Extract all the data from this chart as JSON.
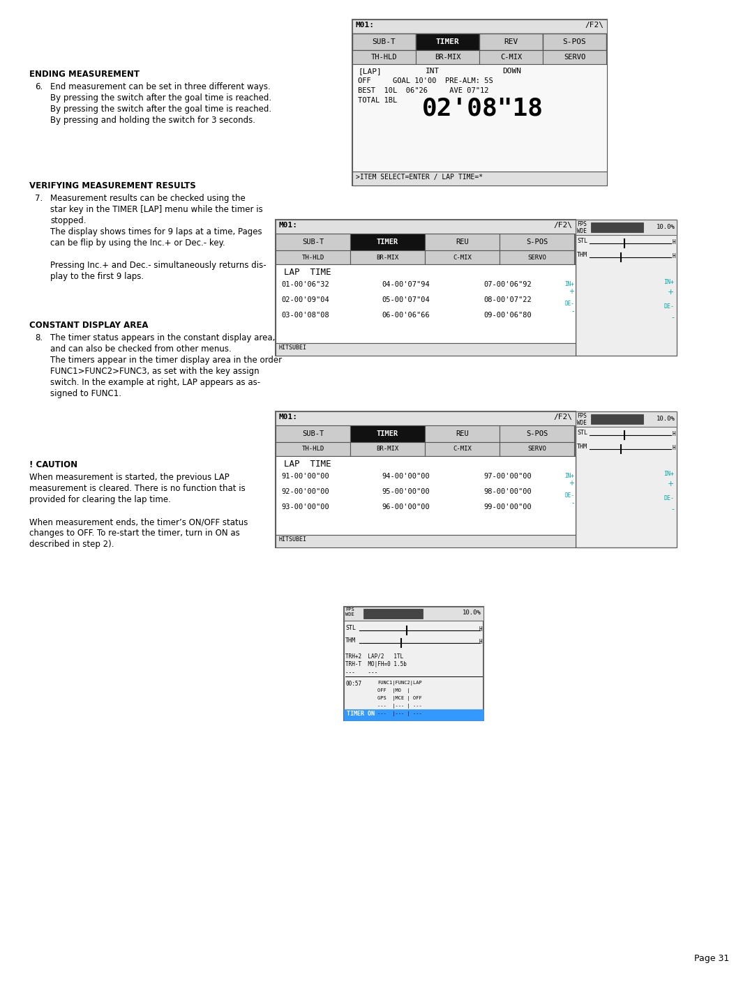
{
  "page_number": "Page 31",
  "bg": "#ffffff",
  "s6_heading": "ENDING MEASUREMENT",
  "s6_lines": [
    "End measurement can be set in three different ways.",
    "By pressing the switch after the goal time is reached.",
    "By pressing the switch after the goal time is reached.",
    "By pressing and holding the switch for 3 seconds."
  ],
  "s7_heading": "VERIFYING MEASUREMENT RESULTS",
  "s7_lines": [
    "Measurement results can be checked using the",
    "star key in the TIMER [LAP] menu while the timer is",
    "stopped.",
    "The display shows times for 9 laps at a time, Pages",
    "can be flip by using the Inc.+ or Dec.- key.",
    "",
    "Pressing Inc.+ and Dec.- simultaneously returns dis-",
    "play to the first 9 laps."
  ],
  "s8_heading": "CONSTANT DISPLAY AREA",
  "s8_lines": [
    "The timer status appears in the constant display area,",
    "and can also be checked from other menus.",
    "The timers appear in the timer display area in the order",
    "FUNC1>FUNC2>FUNC3, as set with the key assign",
    "switch. In the example at right, LAP appears as as-",
    "signed to FUNC1."
  ],
  "caution_heading": "! CAUTION",
  "caution_lines": [
    "When measurement is started, the previous LAP",
    "measurement is cleared. There is no function that is",
    "provided for clearing the lap time.",
    "",
    "When measurement ends, the timer’s ON/OFF status",
    "changes to OFF. To re-start the timer, turn in ON as",
    "described in step 2)."
  ],
  "lap_entries_s2": [
    [
      "01-00'06\"32",
      "04-00'07\"94",
      "07-00'06\"92"
    ],
    [
      "02-00'09\"04",
      "05-00'07\"04",
      "08-00'07\"22"
    ],
    [
      "03-00'08\"08",
      "06-00'06\"66",
      "09-00'06\"80"
    ]
  ],
  "lap_entries_s3": [
    [
      "91-00'00\"00",
      "94-00'00\"00",
      "97-00'00\"00"
    ],
    [
      "92-00'00\"00",
      "95-00'00\"00",
      "98-00'00\"00"
    ],
    [
      "93-00'00\"00",
      "96-00'00\"00",
      "99-00'00\"00"
    ]
  ]
}
